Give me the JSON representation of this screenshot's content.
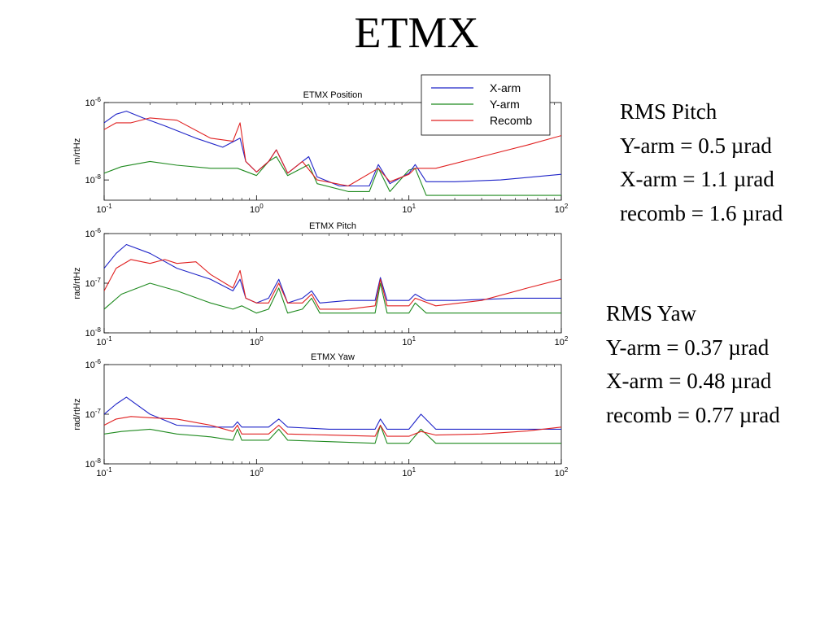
{
  "slide": {
    "title": "ETMX"
  },
  "legend": {
    "entries": [
      {
        "name": "X-arm",
        "color": "#1f24c8"
      },
      {
        "name": "Y-arm",
        "color": "#1f8a1f"
      },
      {
        "name": "Recomb",
        "color": "#e02020"
      }
    ]
  },
  "rms_pitch": {
    "heading": "RMS Pitch",
    "lines": [
      "Y-arm  = 0.5 µrad",
      "X-arm  = 1.1 µrad",
      "recomb = 1.6 µrad"
    ]
  },
  "rms_yaw": {
    "heading": "RMS Yaw",
    "lines": [
      "Y-arm  = 0.37 µrad",
      "X-arm  = 0.48 µrad",
      "recomb = 0.77 µrad"
    ]
  },
  "chart_data": [
    {
      "type": "line",
      "title": "ETMX Position",
      "xlabel": "",
      "ylabel": "m/rtHz",
      "xscale": "log",
      "yscale": "log",
      "xlim": [
        0.1,
        100
      ],
      "ylim": [
        3e-09,
        1e-06
      ],
      "xticks": [
        0.1,
        1,
        10,
        100
      ],
      "xtick_labels": [
        {
          "base": "10",
          "exp": "-1"
        },
        {
          "base": "10",
          "exp": "0"
        },
        {
          "base": "10",
          "exp": "1"
        },
        {
          "base": "10",
          "exp": "2"
        }
      ],
      "yticks": [
        1e-06,
        1e-08
      ],
      "ytick_labels": [
        {
          "base": "10",
          "exp": "-6"
        },
        {
          "base": "10",
          "exp": "-8"
        }
      ],
      "legend": "top-right",
      "series": [
        {
          "name": "X-arm",
          "color": "#1f24c8",
          "x": [
            0.1,
            0.12,
            0.14,
            0.18,
            0.25,
            0.4,
            0.6,
            0.78,
            0.85,
            1.0,
            1.2,
            1.35,
            1.6,
            2.0,
            2.2,
            2.5,
            3.5,
            5.5,
            6.3,
            7.5,
            10,
            11,
            13,
            20,
            40,
            100
          ],
          "y": [
            3e-07,
            5e-07,
            6e-07,
            4e-07,
            2.5e-07,
            1.2e-07,
            7e-08,
            1.2e-07,
            3e-08,
            1.6e-08,
            3e-08,
            6e-08,
            1.5e-08,
            3e-08,
            4e-08,
            1.2e-08,
            7e-09,
            7e-09,
            2.5e-08,
            8e-09,
            1.5e-08,
            2.5e-08,
            9e-09,
            9e-09,
            1e-08,
            1.4e-08
          ]
        },
        {
          "name": "Y-arm",
          "color": "#1f8a1f",
          "x": [
            0.1,
            0.13,
            0.2,
            0.3,
            0.5,
            0.75,
            1.0,
            1.2,
            1.35,
            1.6,
            2.2,
            2.5,
            4,
            5.5,
            6.3,
            7.5,
            10,
            11,
            13,
            20,
            40,
            100
          ],
          "y": [
            1.5e-08,
            2.2e-08,
            3e-08,
            2.4e-08,
            2e-08,
            2e-08,
            1.3e-08,
            3e-08,
            4e-08,
            1.3e-08,
            2.5e-08,
            8e-09,
            5e-09,
            5e-09,
            2e-08,
            5e-09,
            1.8e-08,
            2e-08,
            4e-09,
            4e-09,
            4e-09,
            4e-09
          ]
        },
        {
          "name": "Recomb",
          "color": "#e02020",
          "x": [
            0.1,
            0.12,
            0.15,
            0.2,
            0.3,
            0.5,
            0.7,
            0.78,
            0.85,
            1.0,
            1.2,
            1.35,
            1.6,
            2.0,
            2.5,
            4,
            6.3,
            7.5,
            10,
            11,
            15,
            30,
            60,
            100
          ],
          "y": [
            2e-07,
            3e-07,
            3e-07,
            4e-07,
            3.5e-07,
            1.2e-07,
            1e-07,
            3e-07,
            3e-08,
            1.6e-08,
            3e-08,
            6e-08,
            1.5e-08,
            3e-08,
            1e-08,
            7e-09,
            2e-08,
            9e-09,
            1.4e-08,
            2e-08,
            2e-08,
            4e-08,
            8e-08,
            1.4e-07
          ]
        }
      ]
    },
    {
      "type": "line",
      "title": "ETMX Pitch",
      "xlabel": "",
      "ylabel": "rad/rtHz",
      "xscale": "log",
      "yscale": "log",
      "xlim": [
        0.1,
        100
      ],
      "ylim": [
        1e-08,
        1e-06
      ],
      "xticks": [
        0.1,
        1,
        10,
        100
      ],
      "xtick_labels": [
        {
          "base": "10",
          "exp": "-1"
        },
        {
          "base": "10",
          "exp": "0"
        },
        {
          "base": "10",
          "exp": "1"
        },
        {
          "base": "10",
          "exp": "2"
        }
      ],
      "yticks": [
        1e-06,
        1e-07,
        1e-08
      ],
      "ytick_labels": [
        {
          "base": "10",
          "exp": "-6"
        },
        {
          "base": "10",
          "exp": "-7"
        },
        {
          "base": "10",
          "exp": "-8"
        }
      ],
      "series": [
        {
          "name": "X-arm",
          "color": "#1f24c8",
          "x": [
            0.1,
            0.12,
            0.14,
            0.2,
            0.3,
            0.5,
            0.7,
            0.78,
            0.85,
            1.0,
            1.2,
            1.4,
            1.6,
            2.0,
            2.3,
            2.6,
            4,
            6,
            6.5,
            7.2,
            10,
            11,
            13,
            20,
            50,
            100
          ],
          "y": [
            2e-07,
            4e-07,
            6e-07,
            4e-07,
            2e-07,
            1.2e-07,
            7e-08,
            1.2e-07,
            5e-08,
            4e-08,
            5e-08,
            1.2e-07,
            4e-08,
            5e-08,
            7e-08,
            4e-08,
            4.5e-08,
            4.5e-08,
            1.3e-07,
            4.5e-08,
            4.5e-08,
            6e-08,
            4.5e-08,
            4.5e-08,
            5e-08,
            5e-08
          ]
        },
        {
          "name": "Y-arm",
          "color": "#1f8a1f",
          "x": [
            0.1,
            0.13,
            0.2,
            0.3,
            0.5,
            0.7,
            0.8,
            1.0,
            1.2,
            1.4,
            1.6,
            2.0,
            2.3,
            2.6,
            4,
            6,
            6.5,
            7.2,
            10,
            11,
            13,
            20,
            50,
            100
          ],
          "y": [
            3e-08,
            6e-08,
            1e-07,
            7e-08,
            4e-08,
            3e-08,
            3.5e-08,
            2.5e-08,
            3e-08,
            8e-08,
            2.5e-08,
            3e-08,
            5e-08,
            2.5e-08,
            2.5e-08,
            2.5e-08,
            1e-07,
            2.5e-08,
            2.5e-08,
            4e-08,
            2.5e-08,
            2.5e-08,
            2.5e-08,
            2.5e-08
          ]
        },
        {
          "name": "Recomb",
          "color": "#e02020",
          "x": [
            0.1,
            0.12,
            0.15,
            0.2,
            0.25,
            0.3,
            0.4,
            0.5,
            0.7,
            0.78,
            0.85,
            1.0,
            1.2,
            1.4,
            1.6,
            2.0,
            2.3,
            2.6,
            4,
            6,
            6.5,
            7.2,
            10,
            11,
            15,
            30,
            60,
            100
          ],
          "y": [
            7e-08,
            2e-07,
            3e-07,
            2.5e-07,
            3e-07,
            2.5e-07,
            2.7e-07,
            1.5e-07,
            8e-08,
            1.8e-07,
            5e-08,
            4e-08,
            4e-08,
            1e-07,
            4e-08,
            4e-08,
            6e-08,
            3e-08,
            3e-08,
            3.5e-08,
            1.2e-07,
            3.5e-08,
            3.5e-08,
            5e-08,
            3.5e-08,
            4.5e-08,
            8e-08,
            1.2e-07
          ]
        }
      ]
    },
    {
      "type": "line",
      "title": "ETMX Yaw",
      "xlabel": "",
      "ylabel": "rad/rtHz",
      "xscale": "log",
      "yscale": "log",
      "xlim": [
        0.1,
        100
      ],
      "ylim": [
        1e-08,
        1e-06
      ],
      "xticks": [
        0.1,
        1,
        10,
        100
      ],
      "xtick_labels": [
        {
          "base": "10",
          "exp": "-1"
        },
        {
          "base": "10",
          "exp": "0"
        },
        {
          "base": "10",
          "exp": "1"
        },
        {
          "base": "10",
          "exp": "2"
        }
      ],
      "yticks": [
        1e-06,
        1e-07,
        1e-08
      ],
      "ytick_labels": [
        {
          "base": "10",
          "exp": "-6"
        },
        {
          "base": "10",
          "exp": "-7"
        },
        {
          "base": "10",
          "exp": "-8"
        }
      ],
      "series": [
        {
          "name": "X-arm",
          "color": "#1f24c8",
          "x": [
            0.1,
            0.12,
            0.14,
            0.2,
            0.3,
            0.5,
            0.7,
            0.75,
            0.8,
            1.0,
            1.2,
            1.4,
            1.6,
            3,
            6,
            6.5,
            7.2,
            10,
            12,
            15,
            30,
            100
          ],
          "y": [
            1e-07,
            1.6e-07,
            2.2e-07,
            1e-07,
            6e-08,
            5.5e-08,
            5.5e-08,
            7e-08,
            5.5e-08,
            5.5e-08,
            5.5e-08,
            8e-08,
            5.5e-08,
            5e-08,
            5e-08,
            8e-08,
            5e-08,
            5e-08,
            1e-07,
            5e-08,
            5e-08,
            5e-08
          ]
        },
        {
          "name": "Y-arm",
          "color": "#1f8a1f",
          "x": [
            0.1,
            0.13,
            0.2,
            0.3,
            0.5,
            0.7,
            0.75,
            0.8,
            1.0,
            1.2,
            1.4,
            1.6,
            3,
            6,
            6.5,
            7.2,
            10,
            12,
            15,
            30,
            100
          ],
          "y": [
            4e-08,
            4.5e-08,
            5e-08,
            4e-08,
            3.5e-08,
            3e-08,
            5e-08,
            3e-08,
            3e-08,
            3e-08,
            5e-08,
            3e-08,
            2.8e-08,
            2.6e-08,
            6e-08,
            2.6e-08,
            2.6e-08,
            5e-08,
            2.6e-08,
            2.6e-08,
            2.6e-08
          ]
        },
        {
          "name": "Recomb",
          "color": "#e02020",
          "x": [
            0.1,
            0.12,
            0.15,
            0.2,
            0.3,
            0.5,
            0.7,
            0.75,
            0.8,
            1.0,
            1.2,
            1.4,
            1.6,
            3,
            6,
            6.5,
            7.2,
            10,
            12,
            15,
            30,
            60,
            100
          ],
          "y": [
            6e-08,
            8e-08,
            9e-08,
            8.5e-08,
            8e-08,
            6e-08,
            4.5e-08,
            6e-08,
            4e-08,
            4e-08,
            4e-08,
            6e-08,
            4e-08,
            3.8e-08,
            3.6e-08,
            6e-08,
            3.6e-08,
            3.6e-08,
            4.5e-08,
            3.8e-08,
            4e-08,
            4.6e-08,
            5.5e-08
          ]
        }
      ]
    }
  ]
}
